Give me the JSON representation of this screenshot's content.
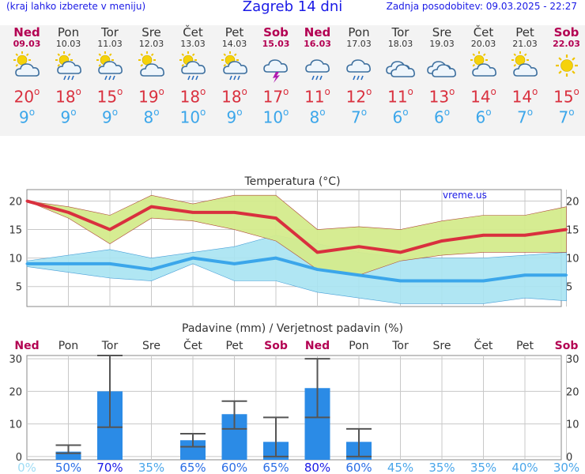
{
  "header": {
    "left_note": "(kraj lahko izberete v meniju)",
    "title": "Zagreb 14 dni",
    "updated": "Zadnja posodobitev: 09.03.2025 - 22:27"
  },
  "colors": {
    "weekday": "#333333",
    "weekend": "#b30052",
    "tmax": "#d9303e",
    "tmin": "#3ba6ea",
    "bar": "#2b8be6",
    "temp_band": "#d4eb8c",
    "rain_band": "#a7e3f2"
  },
  "days": [
    {
      "name": "Ned",
      "date": "09.03",
      "weekend": true,
      "icon": "partly-cloudy-icon",
      "tmax": "20",
      "tmin": "9"
    },
    {
      "name": "Pon",
      "date": "10.03",
      "weekend": false,
      "icon": "sun-cloud-rain-icon",
      "tmax": "18",
      "tmin": "9"
    },
    {
      "name": "Tor",
      "date": "11.03",
      "weekend": false,
      "icon": "sun-cloud-rain-icon",
      "tmax": "15",
      "tmin": "9"
    },
    {
      "name": "Sre",
      "date": "12.03",
      "weekend": false,
      "icon": "partly-cloudy-icon",
      "tmax": "19",
      "tmin": "8"
    },
    {
      "name": "Čet",
      "date": "13.03",
      "weekend": false,
      "icon": "sun-cloud-rain-icon",
      "tmax": "18",
      "tmin": "10"
    },
    {
      "name": "Pet",
      "date": "14.03",
      "weekend": false,
      "icon": "sun-cloud-rain-icon",
      "tmax": "18",
      "tmin": "9"
    },
    {
      "name": "Sob",
      "date": "15.03",
      "weekend": true,
      "icon": "thunderstorm-icon",
      "tmax": "17",
      "tmin": "10"
    },
    {
      "name": "Ned",
      "date": "16.03",
      "weekend": true,
      "icon": "cloud-rain-icon",
      "tmax": "11",
      "tmin": "8"
    },
    {
      "name": "Pon",
      "date": "17.03",
      "weekend": false,
      "icon": "cloud-rain-icon",
      "tmax": "12",
      "tmin": "7"
    },
    {
      "name": "Tor",
      "date": "18.03",
      "weekend": false,
      "icon": "cloudy-icon",
      "tmax": "11",
      "tmin": "6"
    },
    {
      "name": "Sre",
      "date": "19.03",
      "weekend": false,
      "icon": "cloudy-icon",
      "tmax": "13",
      "tmin": "6"
    },
    {
      "name": "Čet",
      "date": "20.03",
      "weekend": false,
      "icon": "partly-cloudy-icon",
      "tmax": "14",
      "tmin": "6"
    },
    {
      "name": "Pet",
      "date": "21.03",
      "weekend": false,
      "icon": "partly-cloudy-icon",
      "tmax": "14",
      "tmin": "7"
    },
    {
      "name": "Sob",
      "date": "22.03",
      "weekend": true,
      "icon": "sun-icon",
      "tmax": "15",
      "tmin": "7"
    }
  ],
  "chart_data": [
    {
      "type": "line",
      "title": "Temperatura (°C)",
      "watermark": "vreme.us",
      "x": [
        "Ned 09.03",
        "Pon 10.03",
        "Tor 11.03",
        "Sre 12.03",
        "Čet 13.03",
        "Pet 14.03",
        "Sob 15.03",
        "Ned 16.03",
        "Pon 17.03",
        "Tor 18.03",
        "Sre 19.03",
        "Čet 20.03",
        "Pet 21.03",
        "Sob 22.03"
      ],
      "yticks": [
        5,
        10,
        15,
        20
      ],
      "ylim": [
        1.5,
        22
      ],
      "grid": true,
      "series": [
        {
          "values": [
            20,
            18,
            15,
            19,
            18,
            18,
            17,
            11,
            12,
            11,
            13,
            14,
            14,
            15
          ],
          "band": [
            [
              20,
              20
            ],
            [
              17,
              19
            ],
            [
              12.5,
              17.5
            ],
            [
              17,
              21
            ],
            [
              16.5,
              19.5
            ],
            [
              15,
              21
            ],
            [
              13,
              21
            ],
            [
              8,
              15
            ],
            [
              7,
              15.5
            ],
            [
              9.5,
              15
            ],
            [
              10.5,
              16.5
            ],
            [
              11,
              17.5
            ],
            [
              11,
              17.5
            ],
            [
              11,
              19
            ]
          ]
        },
        {
          "values": [
            9,
            9,
            9,
            8,
            10,
            9,
            10,
            8,
            7,
            6,
            6,
            6,
            7,
            7
          ],
          "band": [
            [
              8.5,
              9.5
            ],
            [
              7.5,
              10.5
            ],
            [
              6.5,
              11.5
            ],
            [
              6,
              10
            ],
            [
              9,
              11
            ],
            [
              6,
              12
            ],
            [
              6,
              14
            ],
            [
              4,
              12.5
            ],
            [
              3,
              11
            ],
            [
              2,
              10
            ],
            [
              2,
              10
            ],
            [
              2,
              10
            ],
            [
              3,
              10.5
            ],
            [
              2.5,
              11
            ]
          ]
        }
      ]
    },
    {
      "type": "bar",
      "title": "Padavine (mm) / Verjetnost padavin (%)",
      "categories": [
        "Ned",
        "Pon",
        "Tor",
        "Sre",
        "Čet",
        "Pet",
        "Sob",
        "Ned",
        "Pon",
        "Tor",
        "Sre",
        "Čet",
        "Pet",
        "Sob"
      ],
      "weekend": [
        true,
        false,
        false,
        false,
        false,
        false,
        true,
        true,
        false,
        false,
        false,
        false,
        false,
        true
      ],
      "values": [
        0,
        1.5,
        20,
        0,
        5,
        13,
        4.5,
        21,
        4.5,
        0,
        0,
        0,
        0,
        0
      ],
      "error_bars": [
        null,
        [
          1,
          3.5
        ],
        [
          9,
          31
        ],
        null,
        [
          3,
          7
        ],
        [
          8.5,
          17
        ],
        [
          0,
          12
        ],
        [
          12,
          30
        ],
        [
          0,
          8.5
        ],
        null,
        null,
        null,
        null,
        null
      ],
      "probability": [
        "0%",
        "50%",
        "70%",
        "35%",
        "65%",
        "60%",
        "65%",
        "80%",
        "60%",
        "45%",
        "35%",
        "35%",
        "40%",
        "30%"
      ],
      "prob_values": [
        0,
        50,
        70,
        35,
        65,
        60,
        65,
        80,
        60,
        45,
        35,
        35,
        40,
        30
      ],
      "yticks": [
        0,
        10,
        20,
        30
      ],
      "ylim": [
        -1,
        31
      ]
    }
  ]
}
